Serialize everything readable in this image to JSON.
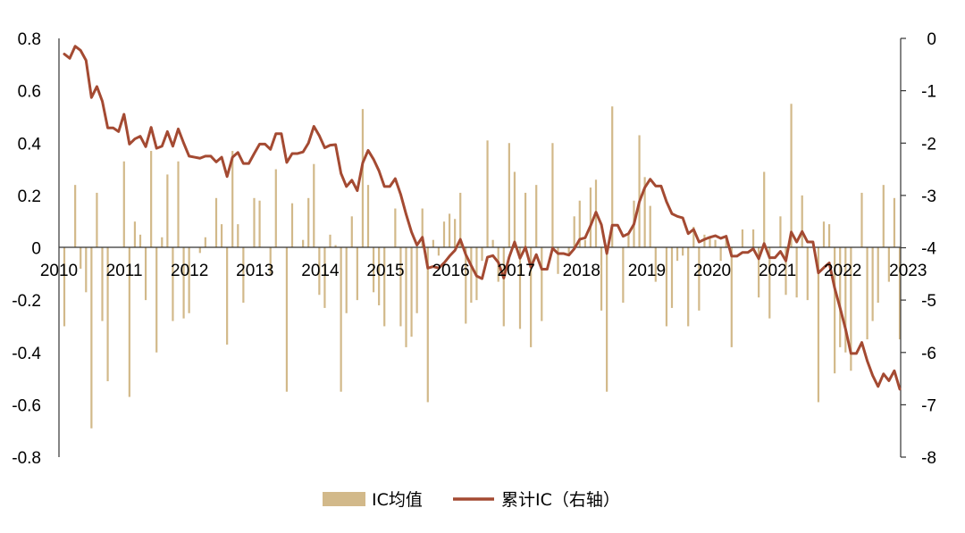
{
  "chart_data": {
    "type": "bar+line",
    "title": "",
    "xlabel": "",
    "ylabel": "",
    "y_left": {
      "min": -0.8,
      "max": 0.8,
      "ticks": [
        "0.8",
        "0.6",
        "0.4",
        "0.2",
        "0",
        "-0.2",
        "-0.4",
        "-0.6",
        "-0.8"
      ]
    },
    "y_right": {
      "min": -8,
      "max": 0,
      "ticks": [
        "0",
        "-1",
        "-2",
        "-3",
        "-4",
        "-5",
        "-6",
        "-7",
        "-8"
      ]
    },
    "x_labels": [
      "2010",
      "2011",
      "2012",
      "2013",
      "2014",
      "2015",
      "2016",
      "2017",
      "2018",
      "2019",
      "2020",
      "2021",
      "2022",
      "2023"
    ],
    "legend_position": "bottom",
    "series": [
      {
        "name": "IC均值",
        "type": "bar",
        "axis": "left",
        "color": "#d2b98a",
        "values": [
          -0.3,
          0.0,
          0.24,
          -0.08,
          -0.17,
          -0.69,
          0.21,
          -0.28,
          -0.51,
          0.0,
          0.0,
          0.33,
          -0.57,
          0.1,
          0.05,
          -0.2,
          0.37,
          -0.4,
          0.04,
          0.28,
          -0.28,
          0.33,
          -0.27,
          -0.25,
          0.0,
          -0.02,
          0.04,
          0.0,
          0.19,
          0.09,
          -0.37,
          0.37,
          0.09,
          -0.21,
          0.0,
          0.19,
          0.18,
          0.0,
          -0.1,
          0.3,
          0.0,
          -0.55,
          0.17,
          0.0,
          0.03,
          0.19,
          0.32,
          -0.18,
          -0.23,
          0.05,
          0.01,
          -0.55,
          -0.25,
          0.12,
          -0.2,
          0.53,
          0.24,
          -0.17,
          -0.22,
          -0.3,
          0.0,
          0.15,
          -0.3,
          -0.38,
          -0.34,
          -0.25,
          0.15,
          -0.59,
          0.03,
          -0.03,
          0.1,
          0.13,
          0.11,
          0.21,
          -0.29,
          -0.21,
          -0.2,
          -0.05,
          0.41,
          0.03,
          -0.13,
          -0.3,
          0.4,
          0.29,
          -0.31,
          0.21,
          -0.38,
          0.24,
          -0.28,
          0.0,
          0.4,
          -0.1,
          0.0,
          -0.03,
          0.12,
          0.18,
          0.03,
          0.23,
          0.26,
          -0.24,
          -0.55,
          0.54,
          0.0,
          -0.21,
          0.05,
          0.18,
          0.43,
          0.27,
          0.16,
          -0.13,
          0.0,
          -0.3,
          -0.23,
          -0.05,
          -0.03,
          -0.3,
          0.08,
          -0.24,
          0.05,
          0.04,
          0.03,
          -0.05,
          0.04,
          -0.38,
          0.0,
          0.07,
          0.0,
          0.07,
          -0.19,
          0.29,
          -0.27,
          0.0,
          0.12,
          -0.18,
          0.55,
          -0.19,
          0.2,
          -0.2,
          0.0,
          -0.59,
          0.1,
          0.09,
          -0.48,
          -0.38,
          -0.4,
          -0.47,
          0.0,
          0.21,
          -0.35,
          -0.28,
          -0.21,
          0.24,
          -0.13,
          0.19,
          -0.35
        ]
      },
      {
        "name": "累计IC（右轴）",
        "type": "line",
        "axis": "right",
        "color": "#a44a32",
        "values": [
          -0.3,
          -0.38,
          -0.15,
          -0.23,
          -0.42,
          -1.13,
          -0.92,
          -1.2,
          -1.71,
          -1.71,
          -1.78,
          -1.45,
          -2.02,
          -1.92,
          -1.87,
          -2.07,
          -1.7,
          -2.1,
          -2.06,
          -1.78,
          -2.06,
          -1.73,
          -2.0,
          -2.25,
          -2.27,
          -2.29,
          -2.25,
          -2.25,
          -2.36,
          -2.27,
          -2.64,
          -2.27,
          -2.18,
          -2.39,
          -2.39,
          -2.2,
          -2.02,
          -2.02,
          -2.12,
          -1.82,
          -1.82,
          -2.37,
          -2.2,
          -2.2,
          -2.17,
          -2.0,
          -1.68,
          -1.86,
          -2.09,
          -2.04,
          -2.03,
          -2.58,
          -2.83,
          -2.71,
          -2.91,
          -2.38,
          -2.14,
          -2.31,
          -2.53,
          -2.83,
          -2.83,
          -2.68,
          -2.98,
          -3.36,
          -3.7,
          -3.95,
          -3.8,
          -4.39,
          -4.36,
          -4.39,
          -4.29,
          -4.16,
          -4.05,
          -3.84,
          -4.13,
          -4.34,
          -4.54,
          -4.59,
          -4.18,
          -4.15,
          -4.28,
          -4.58,
          -4.18,
          -3.89,
          -4.2,
          -3.99,
          -4.37,
          -4.13,
          -4.41,
          -4.41,
          -4.01,
          -4.11,
          -4.11,
          -4.14,
          -4.02,
          -3.84,
          -3.81,
          -3.58,
          -3.32,
          -3.56,
          -4.11,
          -3.57,
          -3.57,
          -3.78,
          -3.73,
          -3.55,
          -3.12,
          -2.85,
          -2.69,
          -2.82,
          -2.82,
          -3.12,
          -3.35,
          -3.4,
          -3.43,
          -3.73,
          -3.65,
          -3.89,
          -3.84,
          -3.8,
          -3.77,
          -3.82,
          -3.78,
          -4.16,
          -4.16,
          -4.09,
          -4.09,
          -4.02,
          -4.21,
          -3.92,
          -4.19,
          -4.19,
          -4.07,
          -4.25,
          -3.7,
          -3.89,
          -3.69,
          -3.89,
          -3.89,
          -4.48,
          -4.38,
          -4.29,
          -4.77,
          -5.15,
          -5.55,
          -6.02,
          -6.02,
          -5.81,
          -6.16,
          -6.44,
          -6.65,
          -6.41,
          -6.54,
          -6.35,
          -6.7
        ]
      }
    ]
  }
}
